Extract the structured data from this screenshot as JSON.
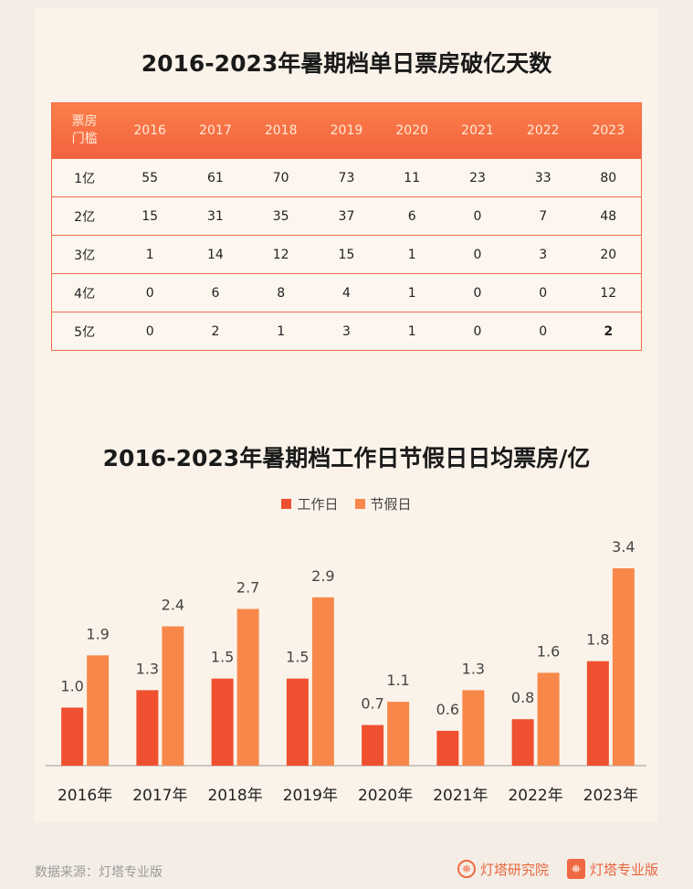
{
  "table": {
    "title": "2016-2023年暑期档单日票房破亿天数",
    "corner_line1": "票房",
    "corner_line2": "门槛",
    "years": [
      "2016",
      "2017",
      "2018",
      "2019",
      "2020",
      "2021",
      "2022",
      "2023"
    ],
    "rows": [
      {
        "label": "1亿",
        "values": [
          "55",
          "61",
          "70",
          "73",
          "11",
          "23",
          "33",
          "80"
        ]
      },
      {
        "label": "2亿",
        "values": [
          "15",
          "31",
          "35",
          "37",
          "6",
          "0",
          "7",
          "48"
        ]
      },
      {
        "label": "3亿",
        "values": [
          "1",
          "14",
          "12",
          "15",
          "1",
          "0",
          "3",
          "20"
        ]
      },
      {
        "label": "4亿",
        "values": [
          "0",
          "6",
          "8",
          "4",
          "1",
          "0",
          "0",
          "12"
        ]
      },
      {
        "label": "5亿",
        "values": [
          "0",
          "2",
          "1",
          "3",
          "1",
          "0",
          "0",
          "2"
        ]
      }
    ]
  },
  "chart_data": {
    "type": "bar",
    "title": "2016-2023年暑期档工作日节假日日均票房/亿",
    "categories": [
      "2016年",
      "2017年",
      "2018年",
      "2019年",
      "2020年",
      "2021年",
      "2022年",
      "2023年"
    ],
    "series": [
      {
        "name": "工作日",
        "color": "#ef5030",
        "values": [
          1.0,
          1.3,
          1.5,
          1.5,
          0.7,
          0.6,
          0.8,
          1.8
        ],
        "labels": [
          "1.0",
          "1.3",
          "1.5",
          "1.5",
          "0.7",
          "0.6",
          "0.8",
          "1.8"
        ]
      },
      {
        "name": "节假日",
        "color": "#f8884a",
        "values": [
          1.9,
          2.4,
          2.7,
          2.9,
          1.1,
          1.3,
          1.6,
          3.4
        ],
        "labels": [
          "1.9",
          "2.4",
          "2.7",
          "2.9",
          "1.1",
          "1.3",
          "1.6",
          "3.4"
        ]
      }
    ],
    "ylim": [
      0,
      3.4
    ],
    "legend": "top-center",
    "grid": false
  },
  "footer": {
    "source": "数据来源：灯塔专业版",
    "brand1": "灯塔研究院",
    "brand2": "灯塔专业版",
    "brand1_icon": "lighthouse-icon",
    "brand2_icon": "lighthouse-box-icon"
  }
}
